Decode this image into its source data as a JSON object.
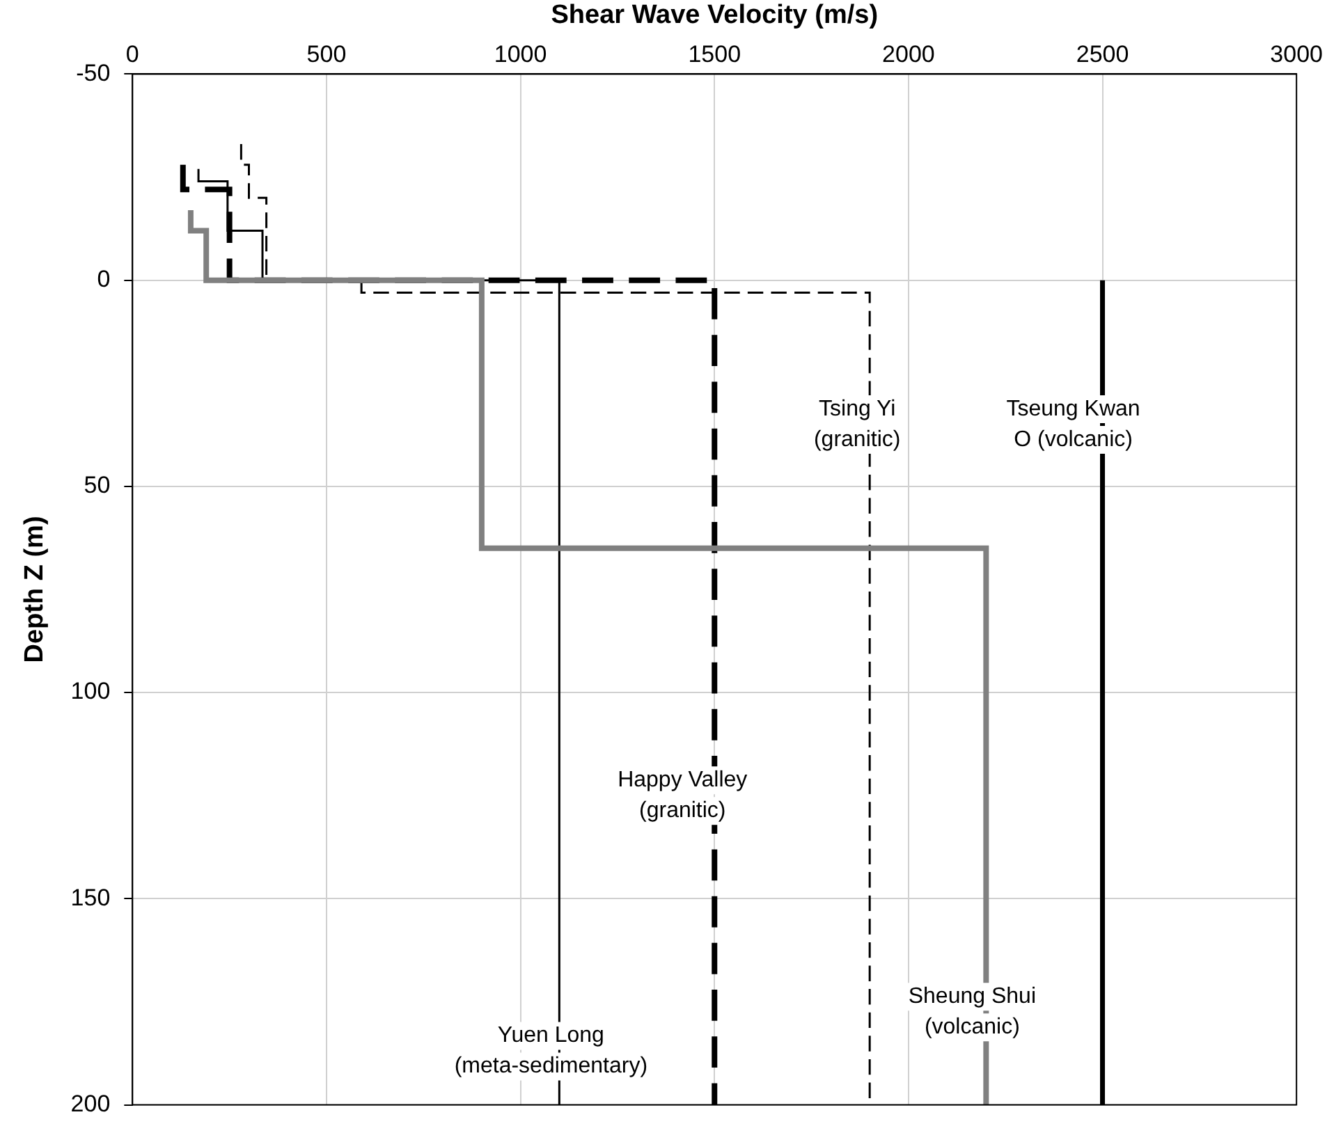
{
  "chart_data": {
    "type": "line",
    "xlabel": "Shear Wave Velocity (m/s)",
    "ylabel": "Depth Z (m)",
    "xlim": [
      0,
      3000
    ],
    "xticks": [
      0,
      500,
      1000,
      1500,
      2000,
      2500,
      3000
    ],
    "ylim": [
      200,
      -50
    ],
    "yticks": [
      -50,
      0,
      50,
      100,
      150,
      200
    ],
    "grid": true,
    "legend": false,
    "marker": "none",
    "series": [
      {
        "name": "Sheung Shui (volcanic)",
        "color": "#808080",
        "line_style": "solid",
        "x": [
          150,
          150,
          190,
          190,
          900,
          900,
          2200,
          2200
        ],
        "values": [
          -17,
          -12,
          -12,
          0,
          0,
          65,
          65,
          200
        ]
      },
      {
        "name": "Yuen Long (meta-sedimentary)",
        "color": "#000000",
        "line_style": "solid",
        "x": [
          170,
          170,
          245,
          245,
          335,
          335,
          1100,
          1100
        ],
        "values": [
          -27,
          -24,
          -24,
          -12,
          -12,
          0,
          0,
          200
        ]
      },
      {
        "name": "Happy Valley (granitic)",
        "color": "#000000",
        "line_style": "dashed",
        "x": [
          130,
          130,
          250,
          250,
          1500,
          1500
        ],
        "values": [
          -28,
          -22,
          -22,
          0,
          0,
          200
        ]
      },
      {
        "name": "Tsing Yi (granitic)",
        "color": "#000000",
        "line_style": "dashed",
        "x": [
          280,
          280,
          300,
          300,
          345,
          345,
          590,
          590,
          1900,
          1900
        ],
        "values": [
          -33,
          -28,
          -28,
          -20,
          -20,
          0,
          0,
          3,
          3,
          200
        ]
      },
      {
        "name": "Tseung Kwan O (volcanic)",
        "color": "#000000",
        "line_style": "solid",
        "x": [
          2500,
          2500
        ],
        "values": [
          0,
          200
        ]
      }
    ]
  }
}
